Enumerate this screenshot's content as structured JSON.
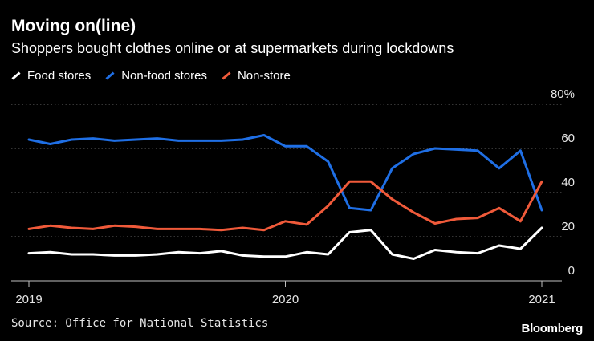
{
  "title": "Moving on(line)",
  "subtitle": "Shoppers bought clothes online or at supermarkets during lockdowns",
  "source": "Source: Office for National Statistics",
  "brand": "Bloomberg",
  "legend": [
    {
      "name": "Food stores",
      "color": "#ffffff"
    },
    {
      "name": "Non-food stores",
      "color": "#1f6fe5"
    },
    {
      "name": "Non-store",
      "color": "#f05a3a"
    }
  ],
  "chart_data": {
    "type": "line",
    "x_ticks": [
      {
        "label": "2019",
        "x": 0
      },
      {
        "label": "2020",
        "x": 12
      },
      {
        "label": "2021",
        "x": 24
      }
    ],
    "y_ticks": [
      {
        "label": "80%",
        "y": 80
      },
      {
        "label": "60",
        "y": 60
      },
      {
        "label": "40",
        "y": 40
      },
      {
        "label": "20",
        "y": 20
      },
      {
        "label": "0",
        "y": 0
      }
    ],
    "ylim": [
      0,
      80
    ],
    "xlim": [
      0,
      24
    ],
    "grid": true,
    "legend_position": "top-left",
    "series": [
      {
        "name": "Food stores",
        "color": "#ffffff",
        "values": [
          12.5,
          13,
          12,
          12,
          11.5,
          11.5,
          12,
          13,
          12.5,
          13.5,
          11.5,
          11,
          11,
          13,
          12,
          22,
          23,
          12,
          10,
          14,
          13,
          12.5,
          16,
          14.5,
          24
        ]
      },
      {
        "name": "Non-food stores",
        "color": "#1f6fe5",
        "values": [
          64,
          62,
          64,
          64.5,
          63.5,
          64,
          64.5,
          63.5,
          63.5,
          63.5,
          64,
          66,
          61,
          61,
          54,
          33,
          32,
          51,
          57.5,
          60,
          59.5,
          59,
          51,
          59,
          32
        ]
      },
      {
        "name": "Non-store",
        "color": "#f05a3a",
        "values": [
          23.5,
          25,
          24,
          23.5,
          25,
          24.5,
          23.5,
          23.5,
          23.5,
          23,
          24,
          23,
          27,
          25.5,
          34,
          45,
          45,
          37,
          31,
          26,
          28,
          28.5,
          33,
          27,
          45
        ]
      }
    ]
  }
}
